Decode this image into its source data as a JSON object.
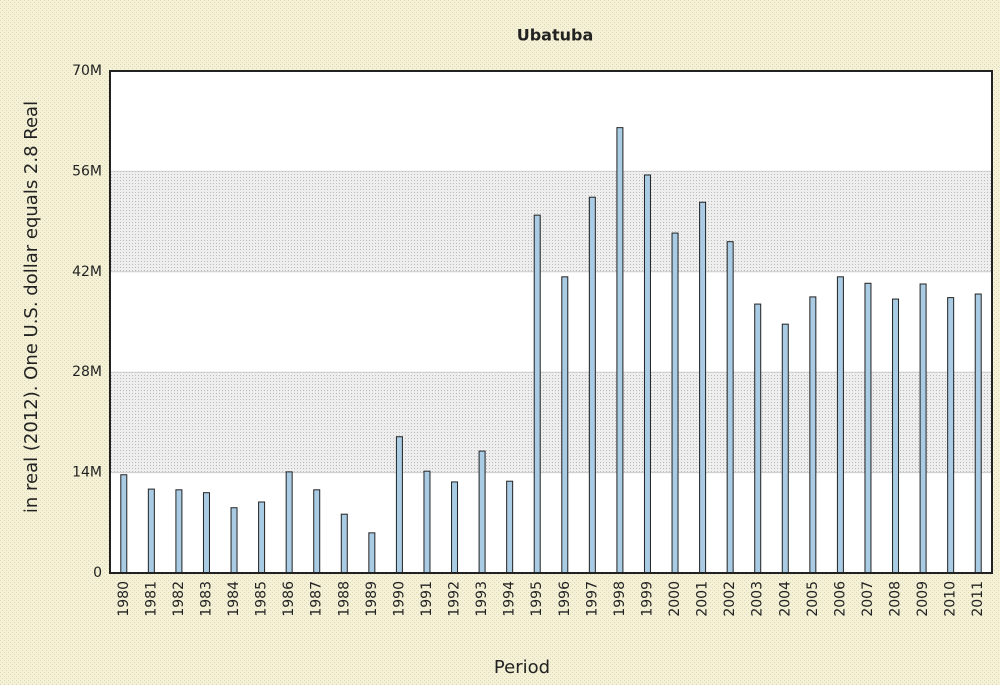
{
  "chart_data": {
    "type": "bar",
    "title": "Ubatuba",
    "x_label": "Period",
    "y_label": "in real (2012). One U.S. dollar equals 2.8 Real",
    "categories": [
      "1980",
      "1981",
      "1982",
      "1983",
      "1984",
      "1985",
      "1986",
      "1987",
      "1988",
      "1989",
      "1990",
      "1991",
      "1992",
      "1993",
      "1994",
      "1995",
      "1996",
      "1997",
      "1998",
      "1999",
      "2000",
      "2001",
      "2002",
      "2003",
      "2004",
      "2005",
      "2006",
      "2007",
      "2008",
      "2009",
      "2010",
      "2011"
    ],
    "values": [
      13700000,
      11700000,
      11600000,
      11200000,
      9100000,
      9900000,
      14100000,
      11600000,
      8200000,
      5600000,
      19000000,
      14200000,
      12700000,
      17000000,
      12800000,
      49900000,
      41300000,
      52400000,
      62100000,
      55500000,
      47400000,
      51700000,
      46200000,
      37500000,
      34700000,
      38500000,
      41300000,
      40400000,
      38200000,
      40300000,
      38400000,
      38900000
    ],
    "color": "#a9cbe3",
    "ylim": [
      0,
      70000000
    ],
    "yticks": [
      0,
      {
        "value": 14000000,
        "label": "14M"
      },
      {
        "value": 28000000,
        "label": "28M"
      },
      {
        "value": 42000000,
        "label": "42M"
      },
      {
        "value": 56000000,
        "label": "56M"
      },
      {
        "value": 70000000,
        "label": "70M"
      }
    ],
    "grid": true
  }
}
